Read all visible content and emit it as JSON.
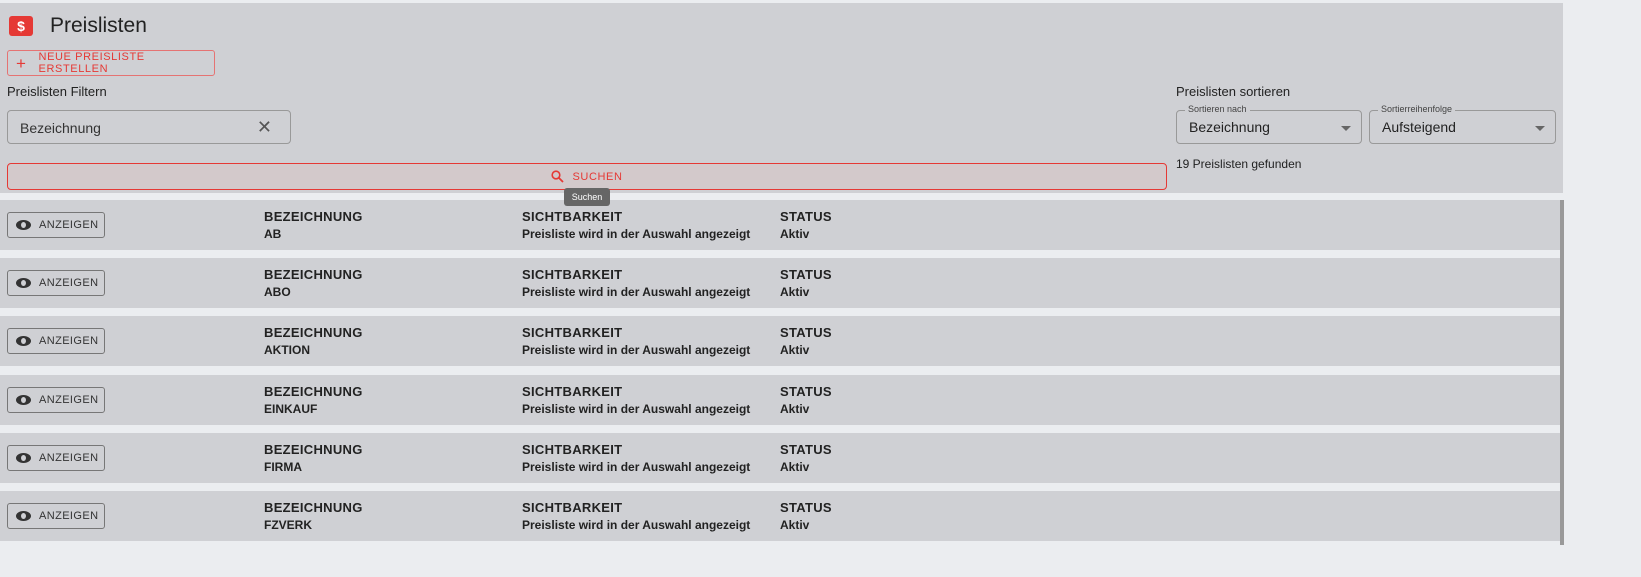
{
  "header": {
    "title": "Preislisten",
    "logo_icon": "price-list-icon",
    "new_button": "NEUE PREISLISTE ERSTELLEN"
  },
  "filter": {
    "label": "Preislisten Filtern",
    "input_value": "Bezeichnung",
    "search_button": "SUCHEN",
    "tooltip": "Suchen"
  },
  "sort": {
    "label": "Preislisten sortieren",
    "sort_by_label": "Sortieren nach",
    "sort_by_value": "Bezeichnung",
    "order_label": "Sortierreihenfolge",
    "order_value": "Aufsteigend",
    "result_count": "19 Preislisten gefunden"
  },
  "columns": {
    "name": "BEZEICHNUNG",
    "visibility": "SICHTBARKEIT",
    "status": "STATUS",
    "show_button": "ANZEIGEN"
  },
  "rows": [
    {
      "name": "AB",
      "visibility": "Preisliste wird in der Auswahl angezeigt",
      "status": "Aktiv"
    },
    {
      "name": "ABO",
      "visibility": "Preisliste wird in der Auswahl angezeigt",
      "status": "Aktiv"
    },
    {
      "name": "AKTION",
      "visibility": "Preisliste wird in der Auswahl angezeigt",
      "status": "Aktiv"
    },
    {
      "name": "EINKAUF",
      "visibility": "Preisliste wird in der Auswahl angezeigt",
      "status": "Aktiv"
    },
    {
      "name": "FIRMA",
      "visibility": "Preisliste wird in der Auswahl angezeigt",
      "status": "Aktiv"
    },
    {
      "name": "FZVERK",
      "visibility": "Preisliste wird in der Auswahl angezeigt",
      "status": "Aktiv"
    }
  ],
  "colors": {
    "accent": "#e53935",
    "panel": "#cfd0d4",
    "background": "#ebedf0"
  }
}
